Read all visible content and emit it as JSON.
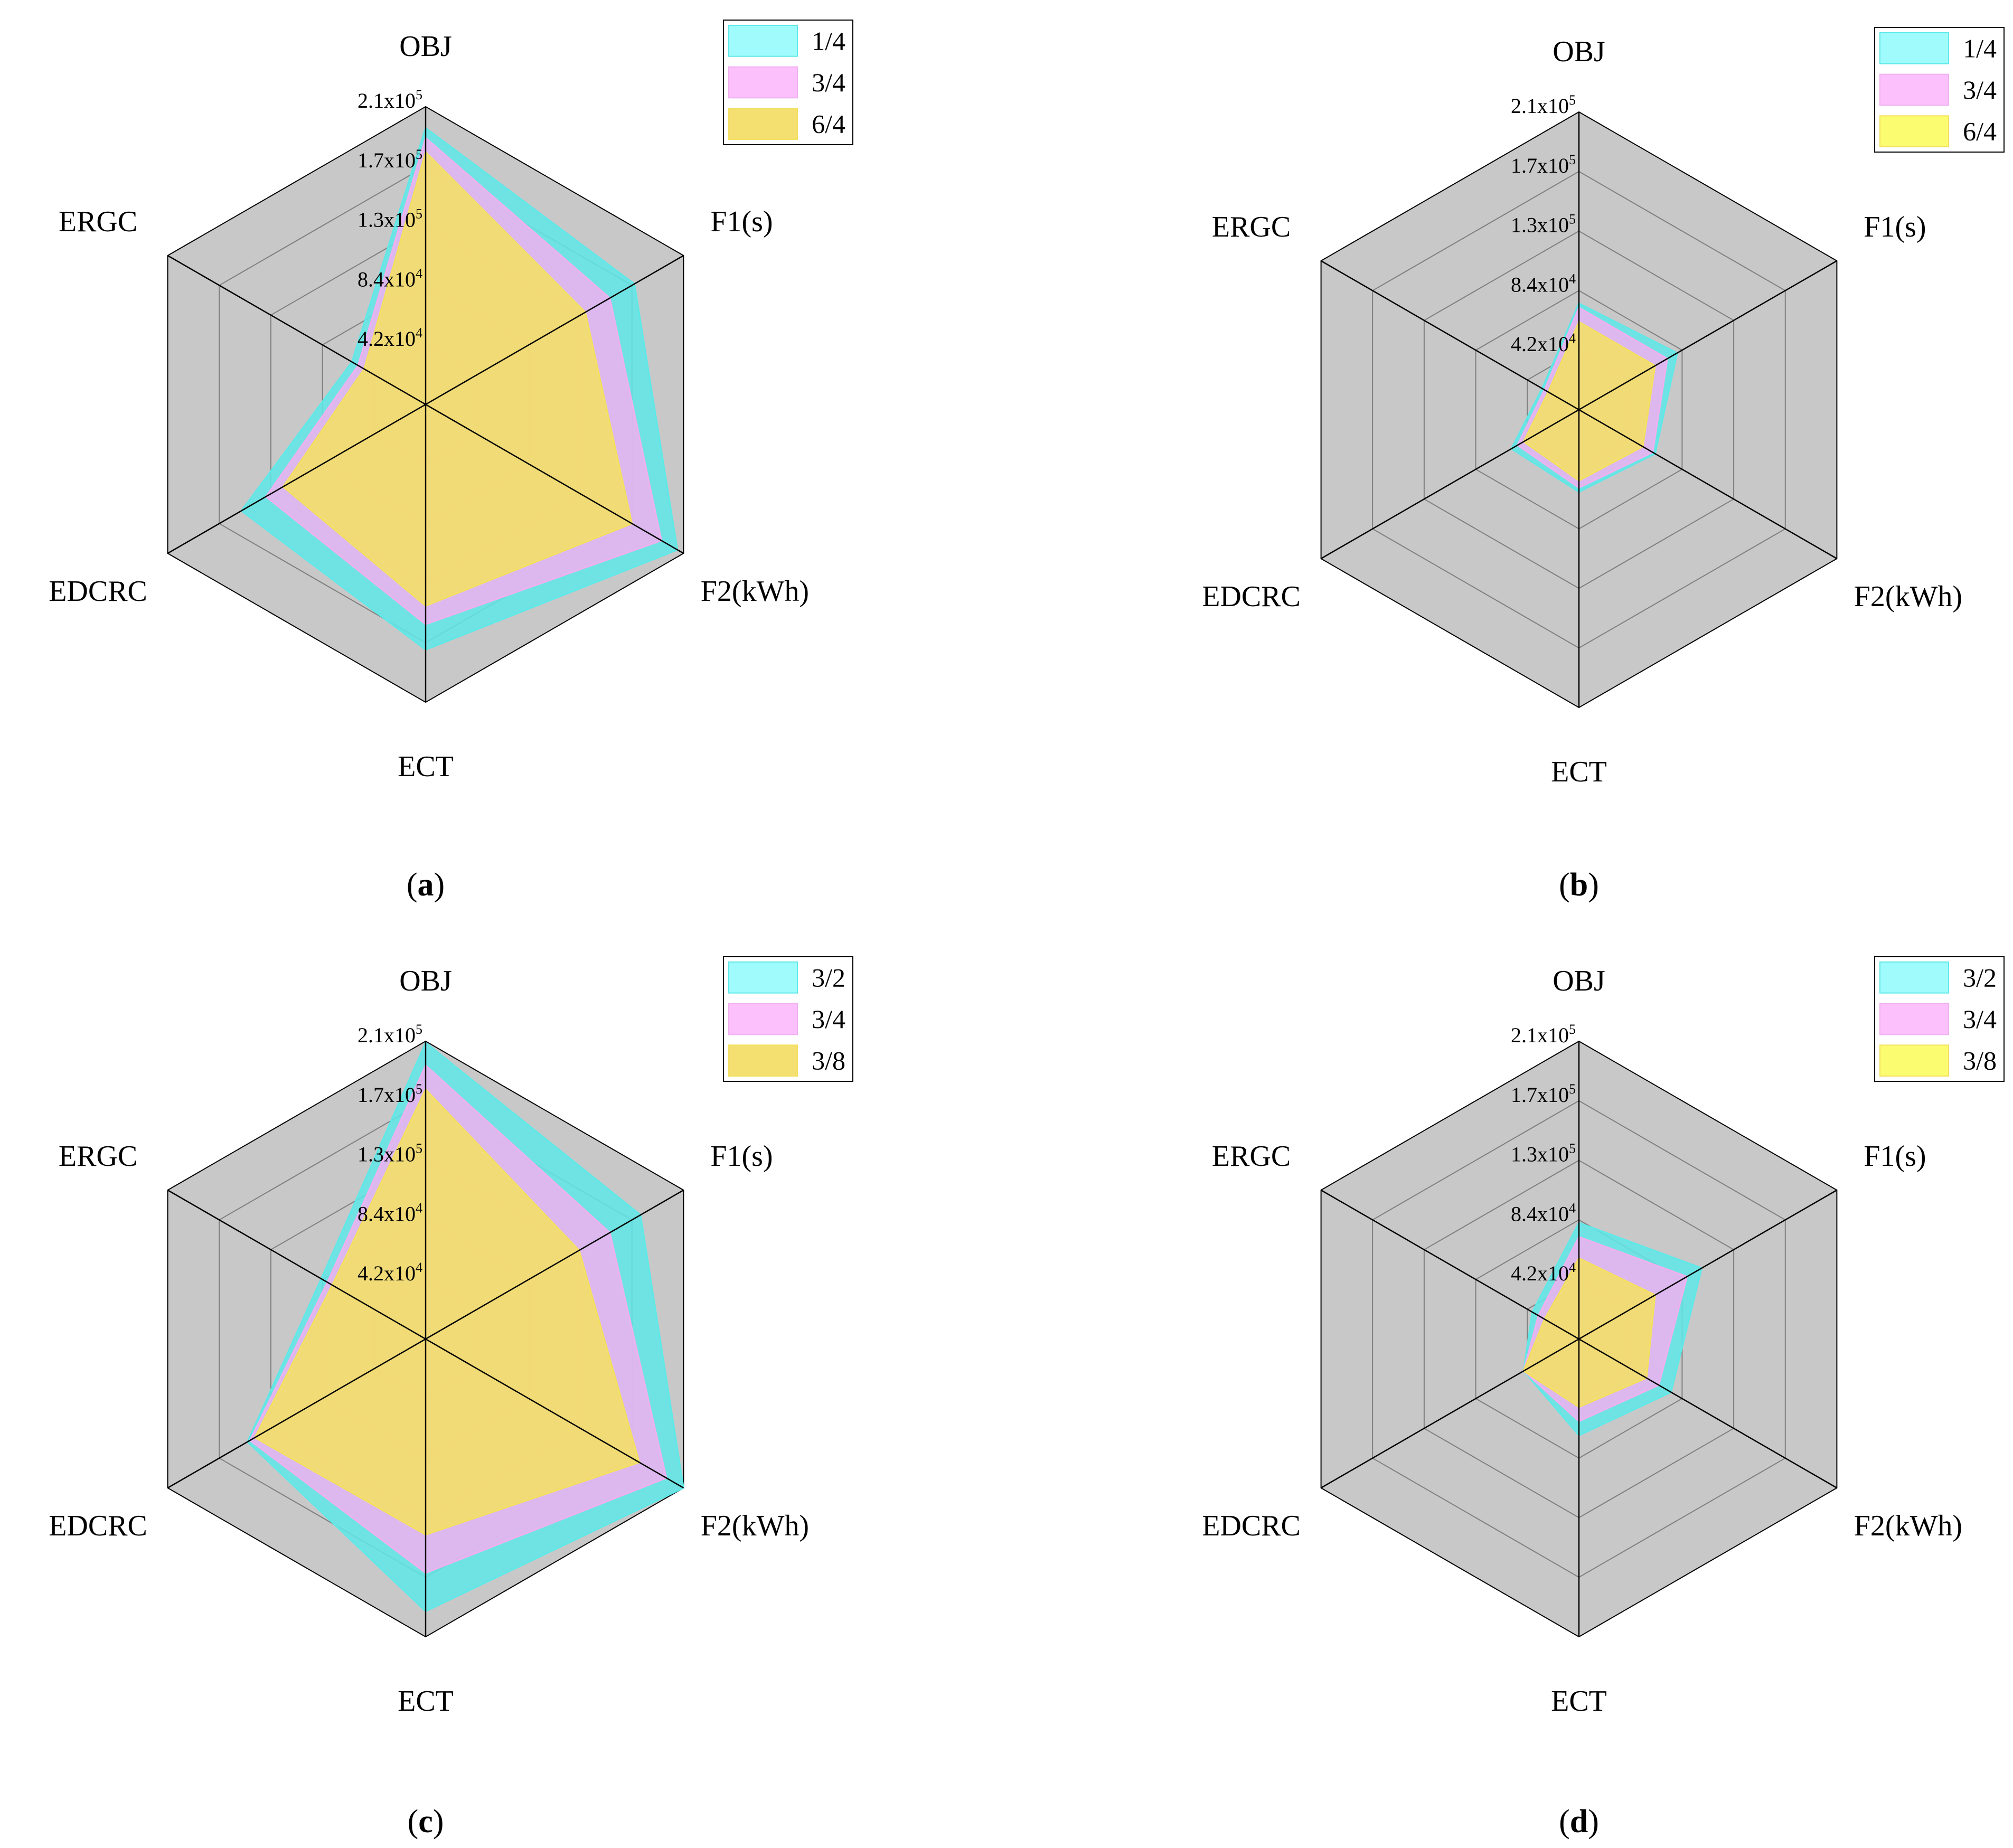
{
  "colors": {
    "background": "#c8c8c8",
    "grid": "#7f7f7f",
    "spoke": "#000000",
    "series": [
      "#5fe8e8",
      "#f0b0f0",
      "#f4e060"
    ],
    "legend_swatch": [
      "#a0fcfc",
      "#fcc0fc",
      "#f4e070"
    ],
    "legend_swatch_alt": [
      "#a0fcfc",
      "#fcc0fc",
      "#fcfc70"
    ]
  },
  "chart_data": [
    {
      "type": "radar",
      "panel": "a",
      "axes": [
        "OBJ",
        "F1(s)",
        "F2(kWh)",
        "ECT",
        "EDCRC",
        "ERGC"
      ],
      "rlim": [
        0,
        210000
      ],
      "ticks": [
        {
          "mantissa": "4.2x10",
          "exp": "4",
          "value": 42000
        },
        {
          "mantissa": "8.4x10",
          "exp": "4",
          "value": 84000
        },
        {
          "mantissa": "1.3x10",
          "exp": "5",
          "value": 126000
        },
        {
          "mantissa": "1.7x10",
          "exp": "5",
          "value": 168000
        },
        {
          "mantissa": "2.1x10",
          "exp": "5",
          "value": 210000
        }
      ],
      "legend": [
        "1/4",
        "3/4",
        "6/4"
      ],
      "legend_position": "top-right",
      "series": [
        {
          "name": "1/4",
          "values": [
            195000,
            170000,
            205000,
            173000,
            150000,
            60000
          ]
        },
        {
          "name": "3/4",
          "values": [
            188000,
            150000,
            192000,
            155000,
            130000,
            55000
          ]
        },
        {
          "name": "6/4",
          "values": [
            178000,
            130000,
            168000,
            142000,
            116000,
            50000
          ]
        }
      ]
    },
    {
      "type": "radar",
      "panel": "b",
      "axes": [
        "OBJ",
        "F1(s)",
        "F2(kWh)",
        "ECT",
        "EDCRC",
        "ERGC"
      ],
      "rlim": [
        0,
        210000
      ],
      "ticks": [
        {
          "mantissa": "4.2x10",
          "exp": "4",
          "value": 42000
        },
        {
          "mantissa": "8.4x10",
          "exp": "4",
          "value": 84000
        },
        {
          "mantissa": "1.3x10",
          "exp": "5",
          "value": 126000
        },
        {
          "mantissa": "1.7x10",
          "exp": "5",
          "value": 168000
        },
        {
          "mantissa": "2.1x10",
          "exp": "5",
          "value": 210000
        }
      ],
      "legend": [
        "1/4",
        "3/4",
        "6/4"
      ],
      "legend_position": "top-right",
      "series": [
        {
          "name": "1/4",
          "values": [
            75000,
            80000,
            62000,
            58000,
            55000,
            30000
          ]
        },
        {
          "name": "3/4",
          "values": [
            72000,
            72000,
            60000,
            55000,
            50000,
            28000
          ]
        },
        {
          "name": "6/4",
          "values": [
            62000,
            62000,
            52000,
            50000,
            45000,
            25000
          ]
        }
      ]
    },
    {
      "type": "radar",
      "panel": "c",
      "axes": [
        "OBJ",
        "F1(s)",
        "F2(kWh)",
        "ECT",
        "EDCRC",
        "ERGC"
      ],
      "rlim": [
        0,
        210000
      ],
      "ticks": [
        {
          "mantissa": "4.2x10",
          "exp": "4",
          "value": 42000
        },
        {
          "mantissa": "8.4x10",
          "exp": "4",
          "value": 84000
        },
        {
          "mantissa": "1.3x10",
          "exp": "5",
          "value": 126000
        },
        {
          "mantissa": "1.7x10",
          "exp": "5",
          "value": 168000
        },
        {
          "mantissa": "2.1x10",
          "exp": "5",
          "value": 210000
        }
      ],
      "legend": [
        "3/2",
        "3/4",
        "3/8"
      ],
      "legend_position": "top-right",
      "series": [
        {
          "name": "3/2",
          "values": [
            209000,
            175000,
            210000,
            192000,
            145000,
            85000
          ]
        },
        {
          "name": "3/4",
          "values": [
            193000,
            150000,
            196000,
            165000,
            143000,
            80000
          ]
        },
        {
          "name": "3/8",
          "values": [
            176000,
            125000,
            174000,
            138000,
            139000,
            76000
          ]
        }
      ]
    },
    {
      "type": "radar",
      "panel": "d",
      "axes": [
        "OBJ",
        "F1(s)",
        "F2(kWh)",
        "ECT",
        "EDCRC",
        "ERGC"
      ],
      "rlim": [
        0,
        210000
      ],
      "ticks": [
        {
          "mantissa": "4.2x10",
          "exp": "4",
          "value": 42000
        },
        {
          "mantissa": "8.4x10",
          "exp": "4",
          "value": 84000
        },
        {
          "mantissa": "1.3x10",
          "exp": "5",
          "value": 126000
        },
        {
          "mantissa": "1.7x10",
          "exp": "5",
          "value": 168000
        },
        {
          "mantissa": "2.1x10",
          "exp": "5",
          "value": 210000
        }
      ],
      "legend": [
        "3/2",
        "3/4",
        "3/8"
      ],
      "legend_position": "top-right",
      "series": [
        {
          "name": "3/2",
          "values": [
            82000,
            100000,
            75000,
            68000,
            45000,
            38000
          ]
        },
        {
          "name": "3/4",
          "values": [
            72000,
            88000,
            65000,
            58000,
            45000,
            33000
          ]
        },
        {
          "name": "3/8",
          "values": [
            57000,
            62000,
            55000,
            48000,
            45000,
            28000
          ]
        }
      ]
    }
  ],
  "panel_labels": [
    "a",
    "b",
    "c",
    "d"
  ]
}
